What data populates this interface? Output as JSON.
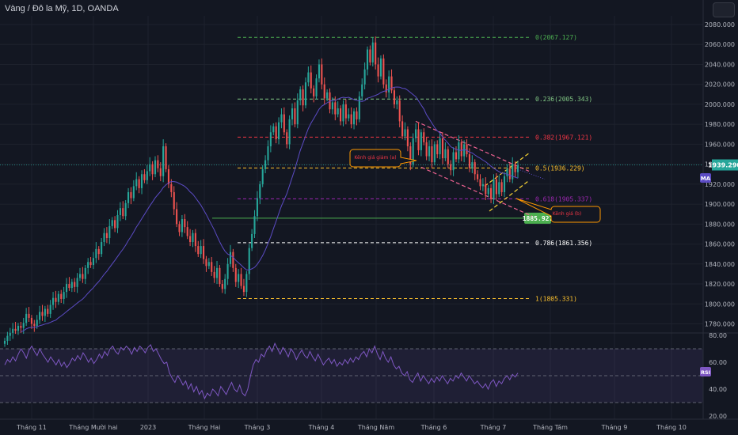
{
  "header": {
    "title": "Vàng / Đô la Mỹ, 1D, OANDA"
  },
  "colors": {
    "bg": "#131722",
    "up": "#26a69a",
    "down": "#ef5350",
    "ma": "#5b4bc4",
    "rsi": "#7e57c2",
    "grid": "#1e222d"
  },
  "chart_data": {
    "type": "candlestick",
    "price_axis": {
      "min": 1770,
      "max": 2090,
      "ticks": [
        "2080.000",
        "2060.000",
        "2040.000",
        "2020.000",
        "2000.000",
        "1980.000",
        "1960.000",
        "1940.000",
        "1920.000",
        "1900.000",
        "1880.000",
        "1860.000",
        "1840.000",
        "1820.000",
        "1800.000",
        "1780.000"
      ]
    },
    "current_price": "1939.290",
    "time_axis": [
      "Tháng 11",
      "Tháng Mười hai",
      "2023",
      "Tháng Hai",
      "Tháng 3",
      "Tháng 4",
      "Tháng Năm",
      "Tháng 6",
      "Tháng 7",
      "Tháng Tám",
      "Tháng 9",
      "Tháng 10"
    ],
    "fib_levels": [
      {
        "label": "0(2067.127)",
        "value": 2067.127,
        "color": "#4caf50"
      },
      {
        "label": "0.236(2005.343)",
        "value": 2005.343,
        "color": "#81c784"
      },
      {
        "label": "0.382(1967.121)",
        "value": 1967.121,
        "color": "#f23645"
      },
      {
        "label": "0.5(1936.229)",
        "value": 1936.229,
        "color": "#fbc02d"
      },
      {
        "label": "0.618(1905.337)",
        "value": 1905.337,
        "color": "#9c27b0"
      },
      {
        "label": "0.786(1861.356)",
        "value": 1861.356,
        "color": "#ffffff"
      },
      {
        "label": "1(1805.331)",
        "value": 1805.331,
        "color": "#fbc02d"
      }
    ],
    "support_label": "1885.927",
    "support_value": 1885.927,
    "annotations": {
      "channel_a": "Kênh giá giảm (a)",
      "channel_b": "Kênh giá (b)"
    },
    "indicators": {
      "ma": "MA",
      "rsi": "RSI"
    },
    "rsi_axis": {
      "min": 20,
      "max": 80,
      "ticks": [
        "80.00",
        "60.00",
        "40.00",
        "20.00"
      ],
      "bands": [
        70,
        50,
        30
      ]
    },
    "closes": [
      1763,
      1768,
      1771,
      1775,
      1773,
      1778,
      1776,
      1781,
      1790,
      1786,
      1780,
      1778,
      1784,
      1792,
      1788,
      1795,
      1790,
      1799,
      1806,
      1802,
      1810,
      1805,
      1812,
      1820,
      1816,
      1822,
      1817,
      1826,
      1830,
      1825,
      1836,
      1842,
      1839,
      1846,
      1855,
      1850,
      1862,
      1871,
      1866,
      1878,
      1884,
      1876,
      1889,
      1896,
      1888,
      1901,
      1912,
      1906,
      1918,
      1925,
      1916,
      1930,
      1924,
      1933,
      1940,
      1930,
      1944,
      1936,
      1928,
      1958,
      1935,
      1920,
      1912,
      1895,
      1880,
      1872,
      1885,
      1877,
      1868,
      1862,
      1871,
      1858,
      1850,
      1858,
      1845,
      1838,
      1842,
      1832,
      1826,
      1836,
      1820,
      1815,
      1825,
      1840,
      1852,
      1836,
      1822,
      1830,
      1818,
      1812,
      1830,
      1856,
      1870,
      1888,
      1906,
      1920,
      1935,
      1944,
      1958,
      1972,
      1978,
      1965,
      1982,
      1990,
      1972,
      1960,
      1985,
      1996,
      1980,
      2004,
      2015,
      1999,
      2022,
      2032,
      2016,
      2008,
      2026,
      2040,
      2020,
      2006,
      2012,
      1995,
      2002,
      1990,
      1996,
      1983,
      2000,
      1986,
      1990,
      1980,
      1993,
      1985,
      2008,
      2020,
      2035,
      2055,
      2042,
      2062,
      2040,
      2028,
      2046,
      2020,
      2012,
      2028,
      2014,
      2000,
      2004,
      1983,
      1968,
      1975,
      1958,
      1940,
      1966,
      1975,
      1954,
      1972,
      1962,
      1948,
      1958,
      1942,
      1960,
      1950,
      1966,
      1946,
      1955,
      1940,
      1934,
      1952,
      1945,
      1962,
      1948,
      1960,
      1950,
      1936,
      1942,
      1930,
      1925,
      1918,
      1920,
      1910,
      1916,
      1905,
      1925,
      1910,
      1922,
      1912,
      1928,
      1935,
      1925,
      1940,
      1932,
      1939
    ],
    "rsi": [
      58,
      62,
      60,
      64,
      61,
      66,
      70,
      67,
      63,
      69,
      72,
      68,
      65,
      70,
      66,
      63,
      60,
      64,
      61,
      58,
      62,
      57,
      60,
      56,
      59,
      63,
      61,
      65,
      62,
      67,
      64,
      60,
      63,
      59,
      62,
      66,
      63,
      68,
      65,
      70,
      72,
      68,
      66,
      71,
      69,
      72,
      70,
      66,
      71,
      68,
      72,
      70,
      67,
      71,
      73,
      68,
      70,
      66,
      62,
      59,
      60,
      52,
      48,
      45,
      50,
      47,
      43,
      46,
      40,
      44,
      38,
      42,
      36,
      39,
      33,
      37,
      35,
      40,
      38,
      35,
      42,
      39,
      36,
      41,
      45,
      40,
      38,
      43,
      37,
      35,
      40,
      50,
      58,
      62,
      60,
      66,
      64,
      69,
      72,
      68,
      74,
      70,
      66,
      71,
      68,
      64,
      70,
      67,
      62,
      66,
      69,
      65,
      63,
      68,
      64,
      61,
      66,
      62,
      58,
      61,
      63,
      59,
      62,
      57,
      60,
      58,
      62,
      59,
      63,
      60,
      64,
      62,
      66,
      68,
      64,
      70,
      67,
      72,
      66,
      62,
      68,
      63,
      60,
      64,
      58,
      55,
      57,
      52,
      50,
      53,
      47,
      45,
      49,
      52,
      46,
      50,
      47,
      44,
      48,
      45,
      49,
      46,
      50,
      47,
      44,
      48,
      46,
      50,
      48,
      52,
      49,
      46,
      50,
      47,
      44,
      46,
      43,
      41,
      44,
      40,
      45,
      47,
      42,
      46,
      44,
      48,
      50,
      47,
      51,
      49,
      52
    ]
  }
}
